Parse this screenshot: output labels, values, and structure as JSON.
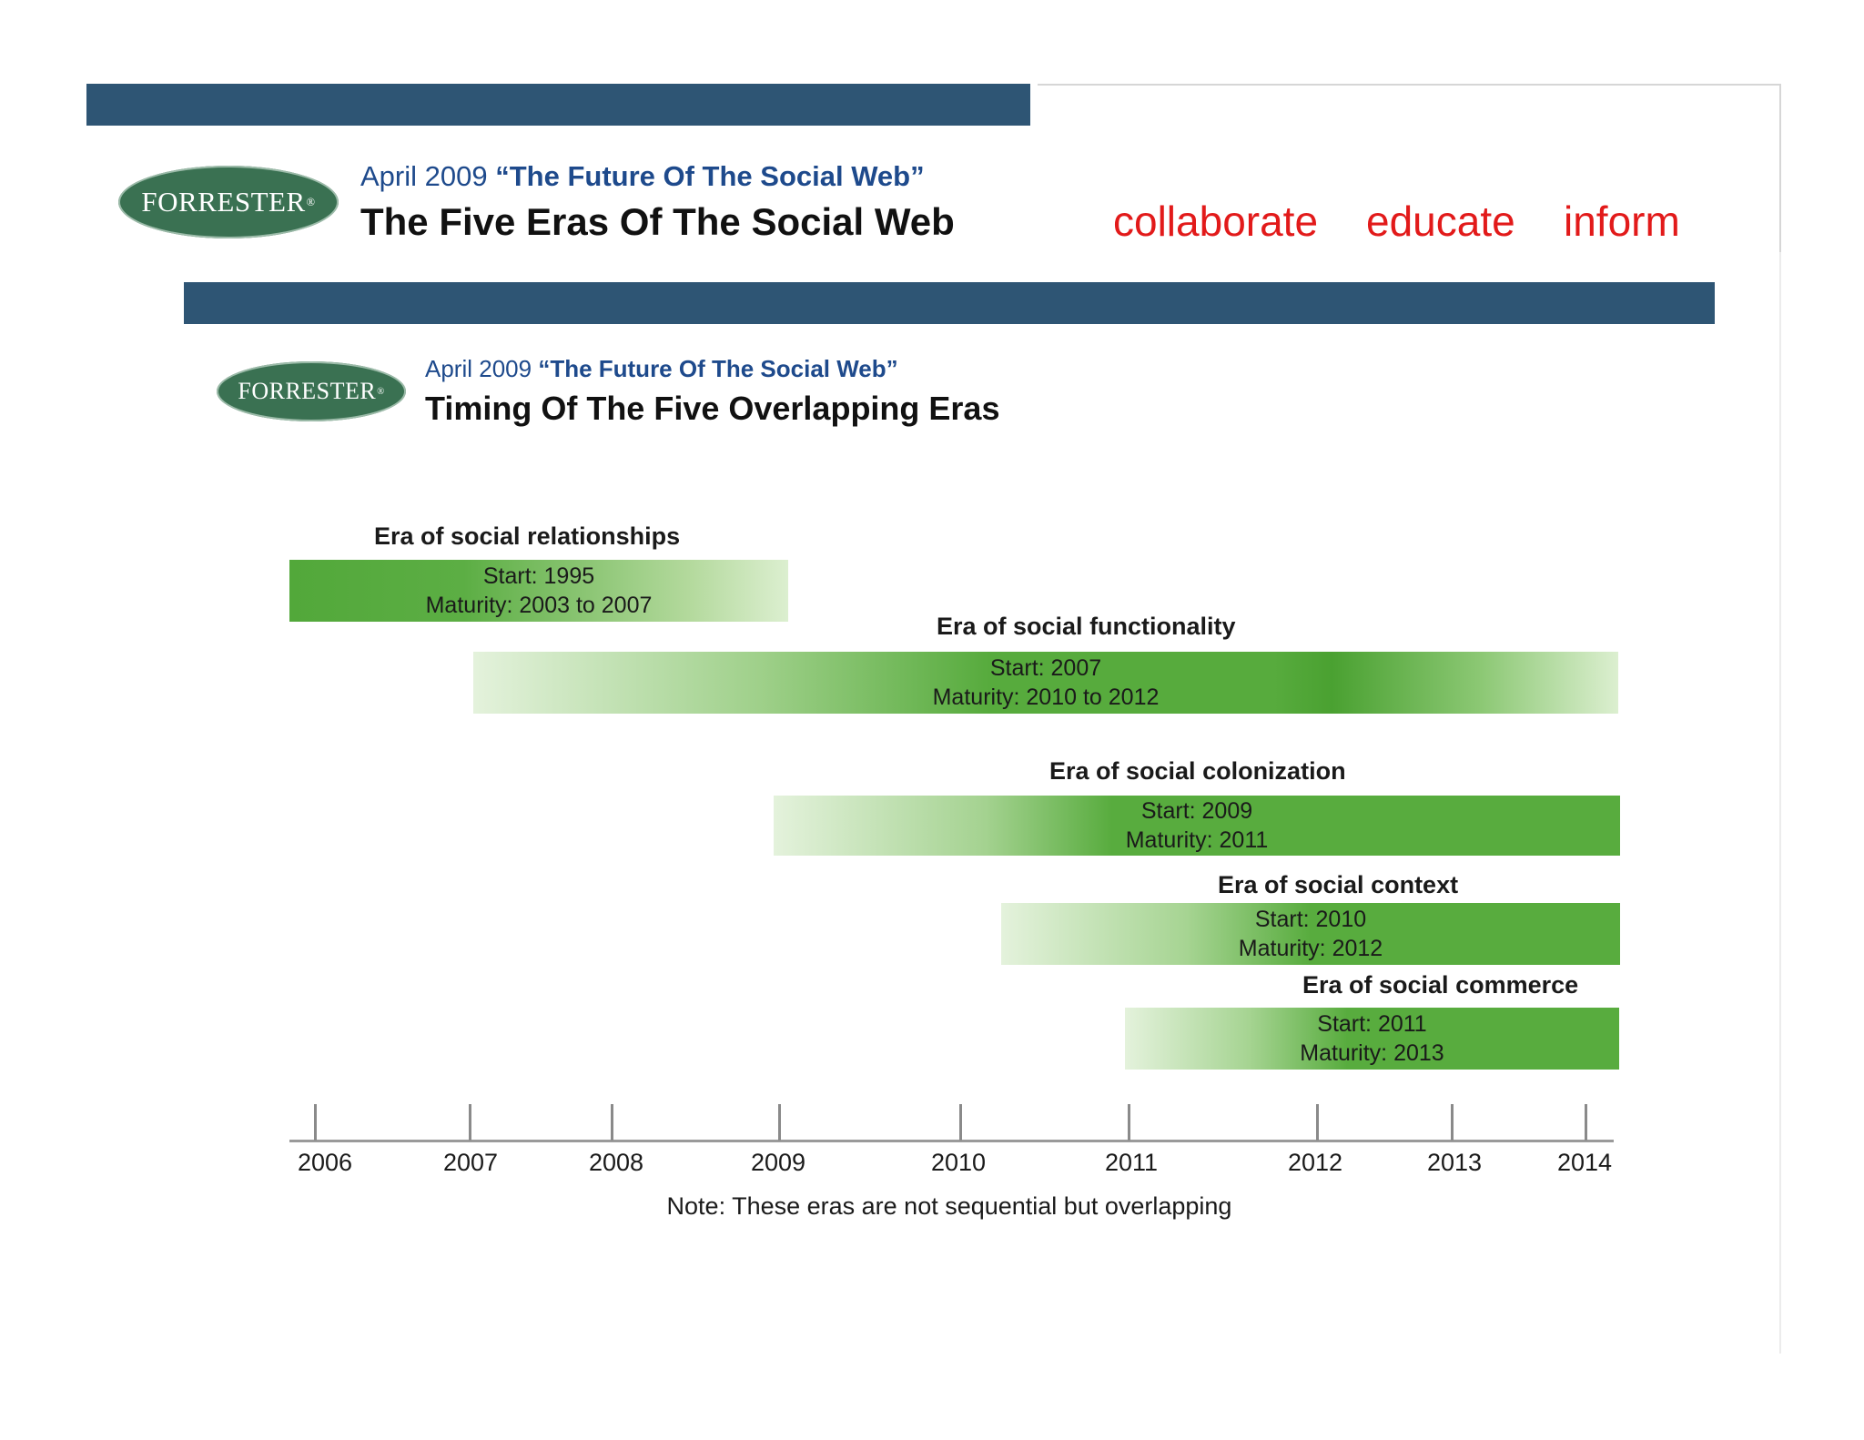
{
  "slide_header": {
    "logo_text": "FORRESTER",
    "logo_mark": "®",
    "subtitle_date": "April 2009",
    "subtitle_report": "“The Future Of The Social Web”",
    "title": "The Five Eras Of The Social Web",
    "keywords": [
      "collaborate",
      "educate",
      "inform"
    ],
    "bar_color": "#2e5574",
    "keyword_color": "#e21a1a"
  },
  "inner_header": {
    "logo_text": "FORRESTER",
    "logo_mark": "®",
    "subtitle_date": "April 2009",
    "subtitle_report": "“The Future Of The Social Web”",
    "title": "Timing Of The Five Overlapping Eras"
  },
  "chart_data": {
    "type": "timeline",
    "x_ticks": [
      "2006",
      "2007",
      "2008",
      "2009",
      "2010",
      "2011",
      "2012",
      "2013",
      "2014"
    ],
    "eras": [
      {
        "name": "Era of social relationships",
        "start_text": "Start: 1995",
        "maturity_text": "Maturity: 2003 to 2007",
        "start": 1995,
        "maturity_from": 2003,
        "maturity_to": 2007
      },
      {
        "name": "Era of social functionality",
        "start_text": "Start: 2007",
        "maturity_text": "Maturity: 2010 to 2012",
        "start": 2007,
        "maturity_from": 2010,
        "maturity_to": 2012
      },
      {
        "name": "Era of social colonization",
        "start_text": "Start: 2009",
        "maturity_text": "Maturity: 2011",
        "start": 2009,
        "maturity_from": 2011,
        "maturity_to": 2011
      },
      {
        "name": "Era of social context",
        "start_text": "Start: 2010",
        "maturity_text": "Maturity: 2012",
        "start": 2010,
        "maturity_from": 2012,
        "maturity_to": 2012
      },
      {
        "name": "Era of social commerce",
        "start_text": "Start: 2011",
        "maturity_text": "Maturity: 2013",
        "start": 2011,
        "maturity_from": 2013,
        "maturity_to": 2013
      }
    ],
    "note": "Note: These eras are not sequential but overlapping",
    "bar_color": "#58ac3e"
  }
}
